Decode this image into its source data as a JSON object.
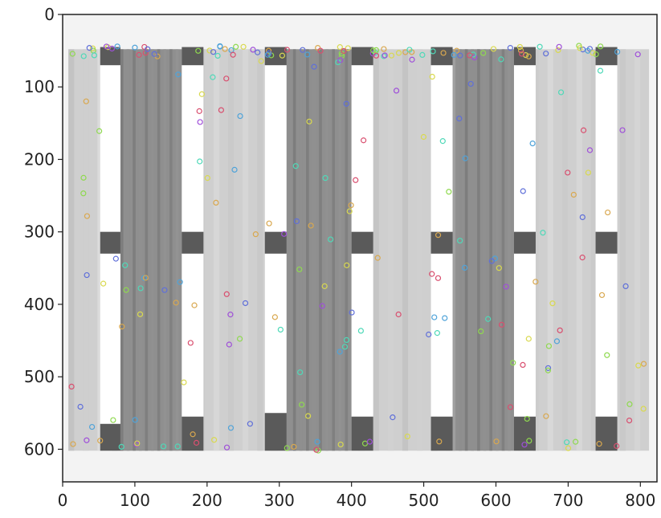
{
  "chart_data": {
    "type": "image",
    "title": "",
    "xlabel": "",
    "ylabel": "",
    "xlim": [
      0,
      823
    ],
    "ylim": [
      645,
      0
    ],
    "x_ticks": [
      0,
      100,
      200,
      300,
      400,
      500,
      600,
      700,
      800
    ],
    "y_ticks": [
      0,
      100,
      200,
      300,
      400,
      500,
      600
    ],
    "x_tick_labels": [
      "0",
      "100",
      "200",
      "300",
      "400",
      "500",
      "600",
      "700",
      "800"
    ],
    "y_tick_labels": [
      "0",
      "100",
      "200",
      "300",
      "400",
      "500",
      "600"
    ],
    "image_content": {
      "description_colors": {
        "background": "#f3f3f3",
        "pallet_light": "#cfcfcf",
        "pallet_dark": "#8f8f8f",
        "slot_white": "#ffffff",
        "block_dark": "#5a5a5a"
      },
      "pallet_extent": {
        "x": [
          8,
          812
        ],
        "y": [
          48,
          602
        ]
      },
      "white_slots": [
        {
          "x": [
            52,
            80
          ],
          "y": [
            70,
            300
          ]
        },
        {
          "x": [
            52,
            80
          ],
          "y": [
            330,
            565
          ]
        },
        {
          "x": [
            165,
            195
          ],
          "y": [
            70,
            300
          ]
        },
        {
          "x": [
            165,
            195
          ],
          "y": [
            330,
            555
          ]
        },
        {
          "x": [
            280,
            310
          ],
          "y": [
            70,
            300
          ]
        },
        {
          "x": [
            280,
            310
          ],
          "y": [
            330,
            550
          ]
        },
        {
          "x": [
            400,
            430
          ],
          "y": [
            70,
            300
          ]
        },
        {
          "x": [
            400,
            430
          ],
          "y": [
            330,
            555
          ]
        },
        {
          "x": [
            510,
            540
          ],
          "y": [
            70,
            300
          ]
        },
        {
          "x": [
            510,
            540
          ],
          "y": [
            330,
            555
          ]
        },
        {
          "x": [
            625,
            655
          ],
          "y": [
            70,
            300
          ]
        },
        {
          "x": [
            625,
            655
          ],
          "y": [
            330,
            555
          ]
        },
        {
          "x": [
            738,
            768
          ],
          "y": [
            70,
            300
          ]
        },
        {
          "x": [
            738,
            768
          ],
          "y": [
            330,
            555
          ]
        }
      ],
      "dark_boards": [
        {
          "x": [
            80,
            165
          ]
        },
        {
          "x": [
            310,
            400
          ]
        },
        {
          "x": [
            540,
            625
          ]
        }
      ],
      "blocks": [
        {
          "x": [
            52,
            80
          ],
          "y": [
            45,
            70
          ]
        },
        {
          "x": [
            165,
            195
          ],
          "y": [
            45,
            70
          ]
        },
        {
          "x": [
            280,
            310
          ],
          "y": [
            45,
            70
          ]
        },
        {
          "x": [
            400,
            430
          ],
          "y": [
            45,
            70
          ]
        },
        {
          "x": [
            510,
            540
          ],
          "y": [
            45,
            70
          ]
        },
        {
          "x": [
            625,
            655
          ],
          "y": [
            45,
            70
          ]
        },
        {
          "x": [
            738,
            768
          ],
          "y": [
            45,
            70
          ]
        },
        {
          "x": [
            52,
            80
          ],
          "y": [
            300,
            330
          ]
        },
        {
          "x": [
            165,
            195
          ],
          "y": [
            300,
            330
          ]
        },
        {
          "x": [
            280,
            310
          ],
          "y": [
            300,
            330
          ]
        },
        {
          "x": [
            400,
            430
          ],
          "y": [
            300,
            330
          ]
        },
        {
          "x": [
            510,
            540
          ],
          "y": [
            300,
            330
          ]
        },
        {
          "x": [
            625,
            655
          ],
          "y": [
            300,
            330
          ]
        },
        {
          "x": [
            738,
            768
          ],
          "y": [
            300,
            330
          ]
        },
        {
          "x": [
            52,
            80
          ],
          "y": [
            565,
            602
          ]
        },
        {
          "x": [
            165,
            195
          ],
          "y": [
            555,
            602
          ]
        },
        {
          "x": [
            280,
            310
          ],
          "y": [
            550,
            602
          ]
        },
        {
          "x": [
            400,
            430
          ],
          "y": [
            555,
            602
          ]
        },
        {
          "x": [
            510,
            540
          ],
          "y": [
            555,
            602
          ]
        },
        {
          "x": [
            625,
            655
          ],
          "y": [
            555,
            602
          ]
        },
        {
          "x": [
            738,
            768
          ],
          "y": [
            555,
            602
          ]
        }
      ],
      "keypoint_colors": [
        "#d94f6f",
        "#4fa3d9",
        "#8fd94f",
        "#d9a84f",
        "#9f4fd9",
        "#4fd9b8",
        "#d9d94f",
        "#5f6fd9"
      ]
    }
  }
}
